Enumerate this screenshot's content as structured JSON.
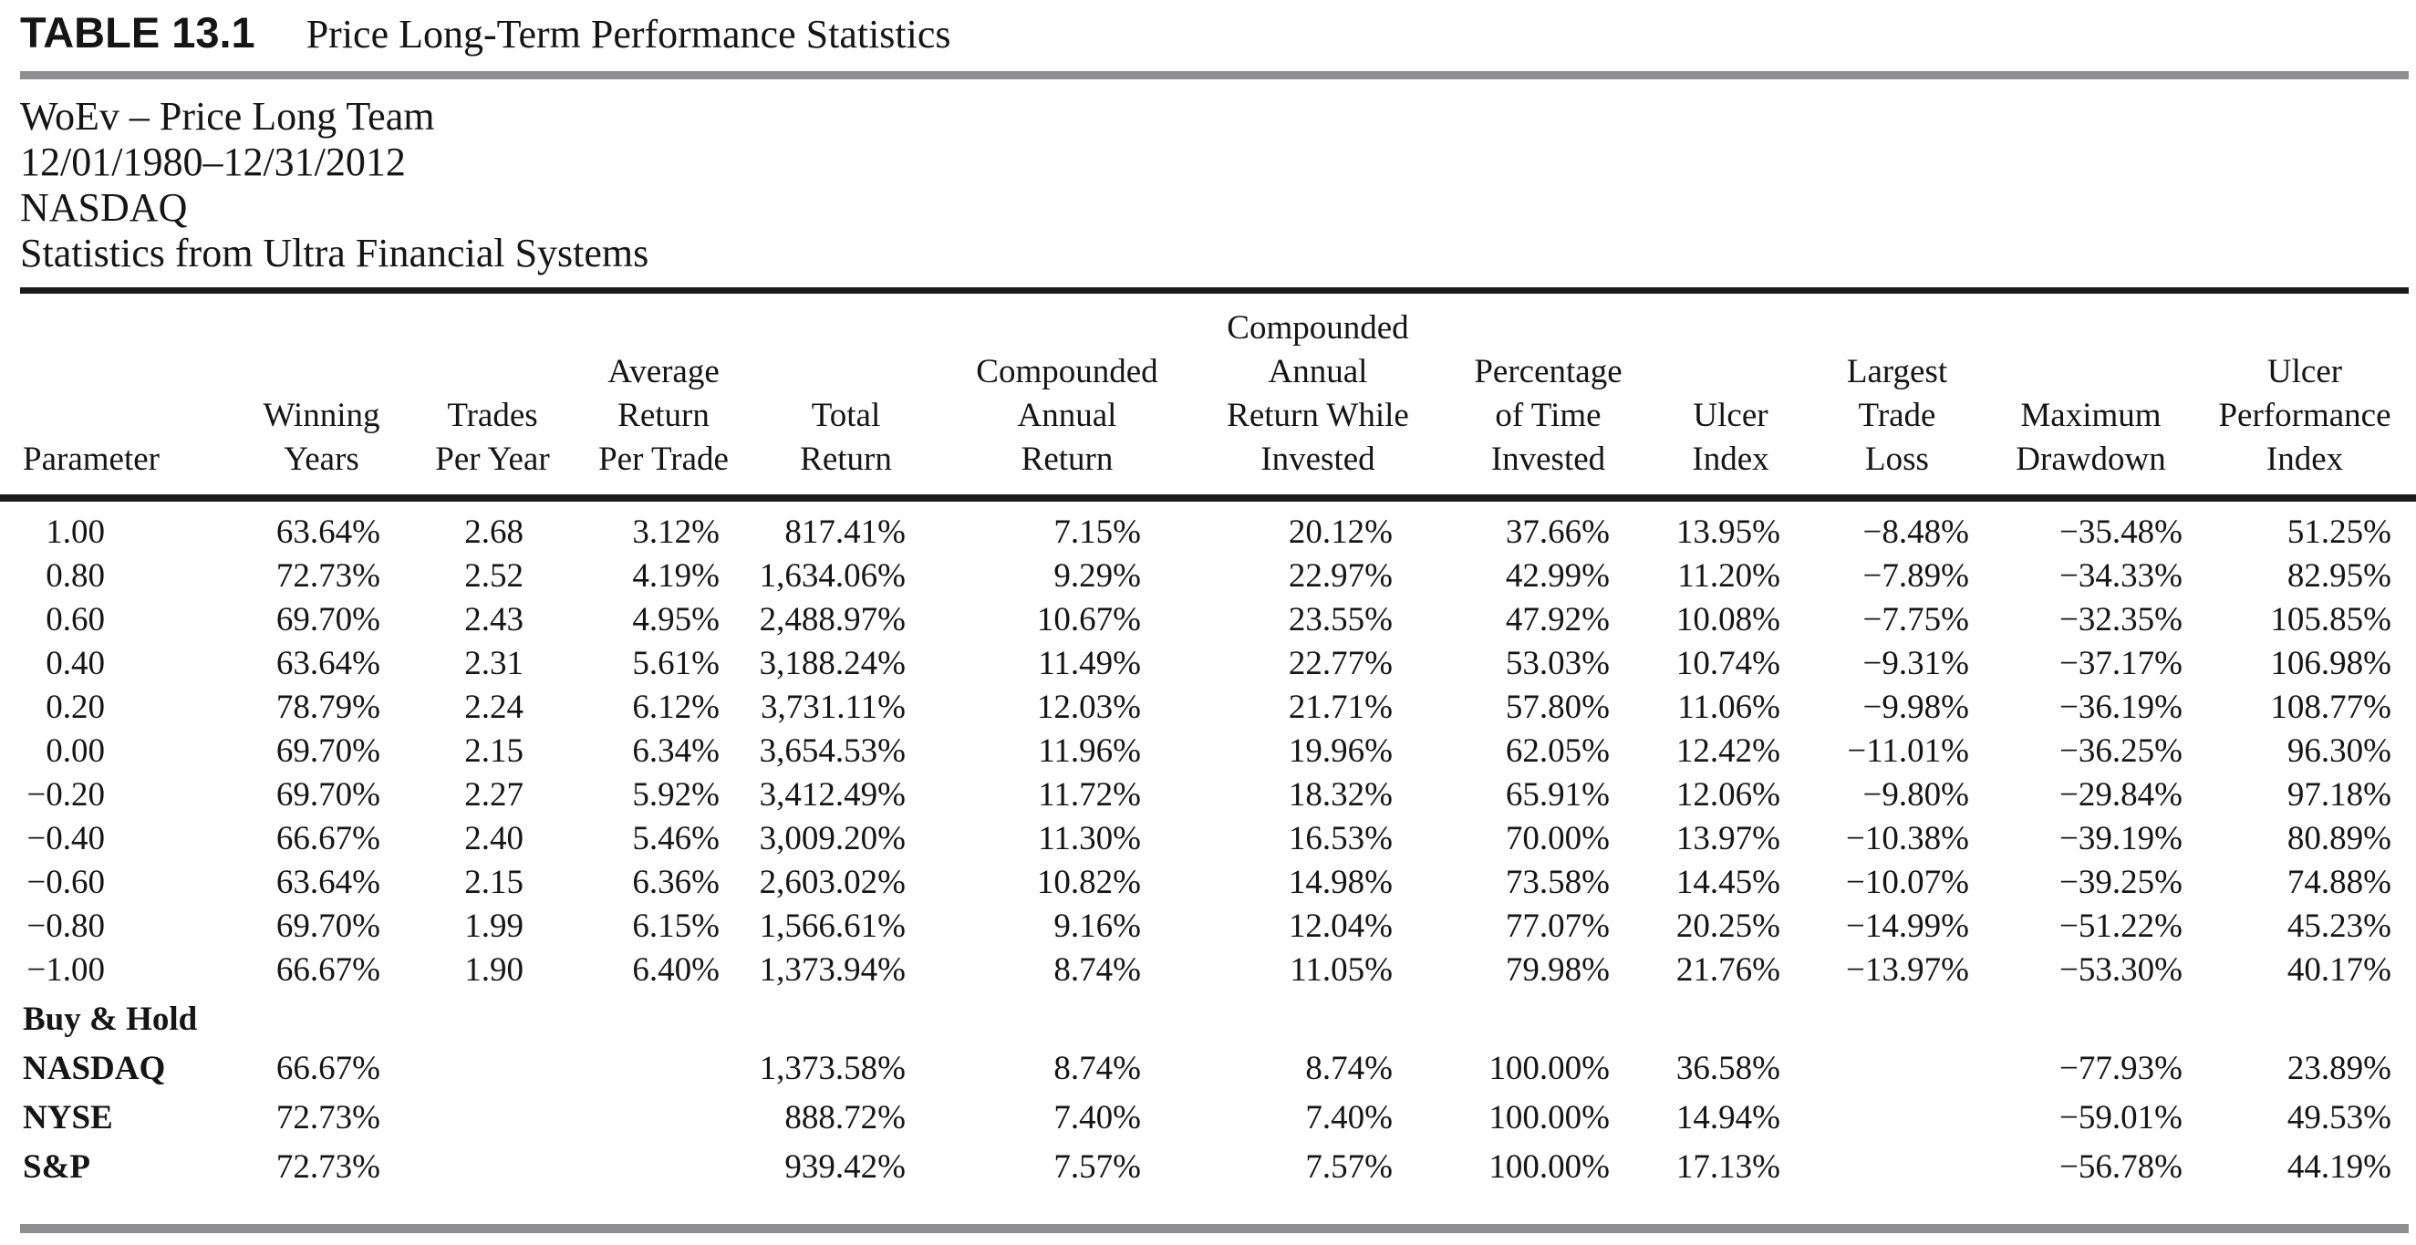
{
  "caption": {
    "label": "TABLE 13.1",
    "title": "Price Long-Term Performance Statistics"
  },
  "subtitle": {
    "lines": [
      "WoEv – Price Long Team",
      "12/01/1980–12/31/2012",
      "NASDAQ",
      "Statistics from Ultra Financial Systems"
    ]
  },
  "table": {
    "columns": [
      {
        "id": "parameter",
        "label": "Parameter"
      },
      {
        "id": "winning-years",
        "label": "Winning\nYears"
      },
      {
        "id": "trades-per-year",
        "label": "Trades\nPer Year"
      },
      {
        "id": "average-return-per-trade",
        "label": "Average\nReturn\nPer Trade"
      },
      {
        "id": "total-return",
        "label": "Total\nReturn"
      },
      {
        "id": "compounded-annual-return",
        "label": "Compounded\nAnnual\nReturn"
      },
      {
        "id": "compounded-annual-return-while-invested",
        "label": "Compounded\nAnnual\nReturn While\nInvested"
      },
      {
        "id": "percentage-of-time-invested",
        "label": "Percentage\nof Time\nInvested"
      },
      {
        "id": "ulcer-index",
        "label": "Ulcer\nIndex"
      },
      {
        "id": "largest-trade-loss",
        "label": "Largest\nTrade\nLoss"
      },
      {
        "id": "maximum-drawdown",
        "label": "Maximum\nDrawdown"
      },
      {
        "id": "ulcer-performance-index",
        "label": "Ulcer\nPerformance\nIndex"
      }
    ],
    "rows": [
      {
        "section": false,
        "cells": [
          "1.00",
          "63.64%",
          "2.68",
          "3.12%",
          "817.41%",
          "7.15%",
          "20.12%",
          "37.66%",
          "13.95%",
          "−8.48%",
          "−35.48%",
          "51.25%"
        ]
      },
      {
        "section": false,
        "cells": [
          "0.80",
          "72.73%",
          "2.52",
          "4.19%",
          "1,634.06%",
          "9.29%",
          "22.97%",
          "42.99%",
          "11.20%",
          "−7.89%",
          "−34.33%",
          "82.95%"
        ]
      },
      {
        "section": false,
        "cells": [
          "0.60",
          "69.70%",
          "2.43",
          "4.95%",
          "2,488.97%",
          "10.67%",
          "23.55%",
          "47.92%",
          "10.08%",
          "−7.75%",
          "−32.35%",
          "105.85%"
        ]
      },
      {
        "section": false,
        "cells": [
          "0.40",
          "63.64%",
          "2.31",
          "5.61%",
          "3,188.24%",
          "11.49%",
          "22.77%",
          "53.03%",
          "10.74%",
          "−9.31%",
          "−37.17%",
          "106.98%"
        ]
      },
      {
        "section": false,
        "cells": [
          "0.20",
          "78.79%",
          "2.24",
          "6.12%",
          "3,731.11%",
          "12.03%",
          "21.71%",
          "57.80%",
          "11.06%",
          "−9.98%",
          "−36.19%",
          "108.77%"
        ]
      },
      {
        "section": false,
        "cells": [
          "0.00",
          "69.70%",
          "2.15",
          "6.34%",
          "3,654.53%",
          "11.96%",
          "19.96%",
          "62.05%",
          "12.42%",
          "−11.01%",
          "−36.25%",
          "96.30%"
        ]
      },
      {
        "section": false,
        "cells": [
          "−0.20",
          "69.70%",
          "2.27",
          "5.92%",
          "3,412.49%",
          "11.72%",
          "18.32%",
          "65.91%",
          "12.06%",
          "−9.80%",
          "−29.84%",
          "97.18%"
        ]
      },
      {
        "section": false,
        "cells": [
          "−0.40",
          "66.67%",
          "2.40",
          "5.46%",
          "3,009.20%",
          "11.30%",
          "16.53%",
          "70.00%",
          "13.97%",
          "−10.38%",
          "−39.19%",
          "80.89%"
        ]
      },
      {
        "section": false,
        "cells": [
          "−0.60",
          "63.64%",
          "2.15",
          "6.36%",
          "2,603.02%",
          "10.82%",
          "14.98%",
          "73.58%",
          "14.45%",
          "−10.07%",
          "−39.25%",
          "74.88%"
        ]
      },
      {
        "section": false,
        "cells": [
          "−0.80",
          "69.70%",
          "1.99",
          "6.15%",
          "1,566.61%",
          "9.16%",
          "12.04%",
          "77.07%",
          "20.25%",
          "−14.99%",
          "−51.22%",
          "45.23%"
        ]
      },
      {
        "section": false,
        "cells": [
          "−1.00",
          "66.67%",
          "1.90",
          "6.40%",
          "1,373.94%",
          "8.74%",
          "11.05%",
          "79.98%",
          "21.76%",
          "−13.97%",
          "−53.30%",
          "40.17%"
        ]
      },
      {
        "section": true,
        "cells": [
          "Buy & Hold",
          "",
          "",
          "",
          "",
          "",
          "",
          "",
          "",
          "",
          "",
          ""
        ]
      },
      {
        "section": true,
        "cells": [
          "NASDAQ",
          "66.67%",
          "",
          "",
          "1,373.58%",
          "8.74%",
          "8.74%",
          "100.00%",
          "36.58%",
          "",
          "−77.93%",
          "23.89%"
        ]
      },
      {
        "section": true,
        "cells": [
          "NYSE",
          "72.73%",
          "",
          "",
          "888.72%",
          "7.40%",
          "7.40%",
          "100.00%",
          "14.94%",
          "",
          "−59.01%",
          "49.53%"
        ]
      },
      {
        "section": true,
        "cells": [
          "S&P",
          "72.73%",
          "",
          "",
          "939.42%",
          "7.57%",
          "7.57%",
          "100.00%",
          "17.13%",
          "",
          "−56.78%",
          "44.19%"
        ]
      }
    ]
  },
  "colors": {
    "background": "#ffffff",
    "text": "#151515",
    "rule_gray": "#8e8e90",
    "rule_black": "#1b1b1b"
  }
}
